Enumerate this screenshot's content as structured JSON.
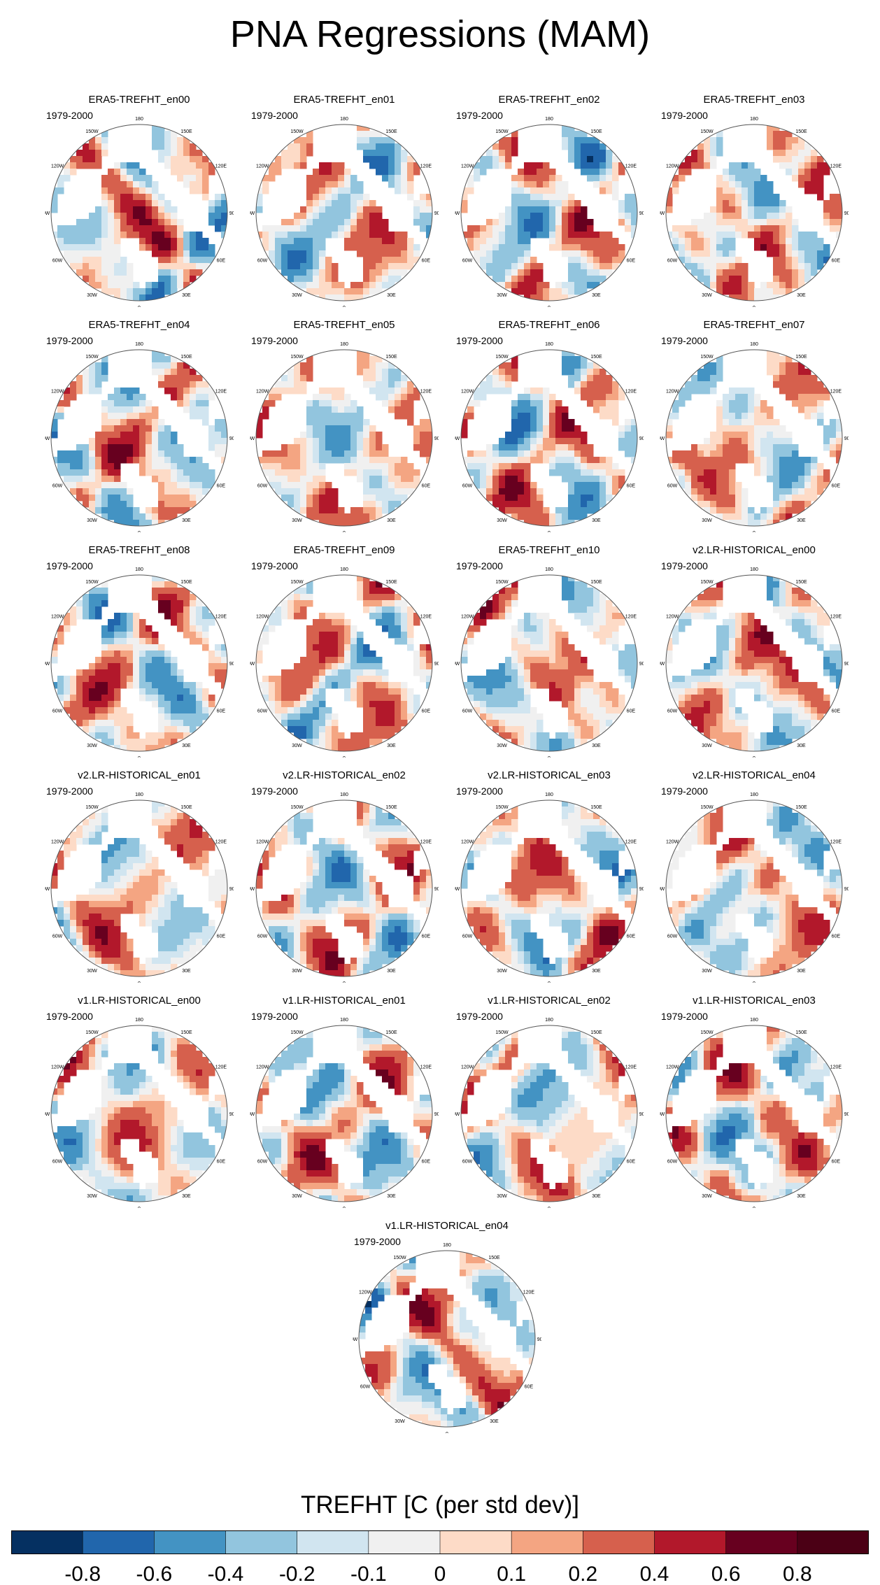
{
  "figure": {
    "title": "PNA Regressions (MAM)",
    "colorbar_title": "TREFHT [C (per std dev)]"
  },
  "chart_data": {
    "type": "polar-stereographic map grid",
    "title": "PNA Regressions (MAM)",
    "variable": "TREFHT",
    "units": "C (per std dev)",
    "season": "MAM",
    "period": "1979-2000",
    "longitude_labels": [
      "180",
      "150E",
      "120E",
      "90E",
      "60E",
      "30E",
      "0",
      "30W",
      "60W",
      "90W",
      "120W",
      "150W"
    ],
    "colorbar": {
      "levels": [
        -0.8,
        -0.6,
        -0.4,
        -0.2,
        -0.1,
        0,
        0.1,
        0.2,
        0.4,
        0.6,
        0.8
      ],
      "colors": [
        "#053061",
        "#2166ac",
        "#4393c3",
        "#92c5de",
        "#d1e5f0",
        "#f0f0f0",
        "#fddbc7",
        "#f4a582",
        "#d6604d",
        "#b2182b",
        "#67001f",
        "#4b0015"
      ]
    },
    "panels": [
      {
        "title": "ERA5-TREFHT_en00",
        "period": "1979-2000"
      },
      {
        "title": "ERA5-TREFHT_en01",
        "period": "1979-2000"
      },
      {
        "title": "ERA5-TREFHT_en02",
        "period": "1979-2000"
      },
      {
        "title": "ERA5-TREFHT_en03",
        "period": "1979-2000"
      },
      {
        "title": "ERA5-TREFHT_en04",
        "period": "1979-2000"
      },
      {
        "title": "ERA5-TREFHT_en05",
        "period": "1979-2000"
      },
      {
        "title": "ERA5-TREFHT_en06",
        "period": "1979-2000"
      },
      {
        "title": "ERA5-TREFHT_en07",
        "period": "1979-2000"
      },
      {
        "title": "ERA5-TREFHT_en08",
        "period": "1979-2000"
      },
      {
        "title": "ERA5-TREFHT_en09",
        "period": "1979-2000"
      },
      {
        "title": "ERA5-TREFHT_en10",
        "period": "1979-2000"
      },
      {
        "title": "v2.LR-HISTORICAL_en00",
        "period": "1979-2000"
      },
      {
        "title": "v2.LR-HISTORICAL_en01",
        "period": "1979-2000"
      },
      {
        "title": "v2.LR-HISTORICAL_en02",
        "period": "1979-2000"
      },
      {
        "title": "v2.LR-HISTORICAL_en03",
        "period": "1979-2000"
      },
      {
        "title": "v2.LR-HISTORICAL_en04",
        "period": "1979-2000"
      },
      {
        "title": "v1.LR-HISTORICAL_en00",
        "period": "1979-2000"
      },
      {
        "title": "v1.LR-HISTORICAL_en01",
        "period": "1979-2000"
      },
      {
        "title": "v1.LR-HISTORICAL_en02",
        "period": "1979-2000"
      },
      {
        "title": "v1.LR-HISTORICAL_en03",
        "period": "1979-2000"
      },
      {
        "title": "v1.LR-HISTORICAL_en04",
        "period": "1979-2000"
      }
    ]
  }
}
